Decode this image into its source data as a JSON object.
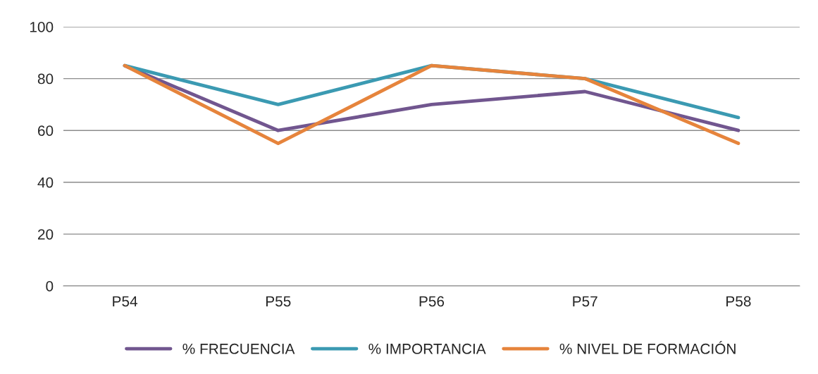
{
  "chart_data": {
    "type": "line",
    "categories": [
      "P54",
      "P55",
      "P56",
      "P57",
      "P58"
    ],
    "series": [
      {
        "name": "% FRECUENCIA",
        "color": "#71568f",
        "values": [
          85,
          60,
          70,
          75,
          60
        ]
      },
      {
        "name": "% IMPORTANCIA",
        "color": "#3b9ab2",
        "values": [
          85,
          70,
          85,
          80,
          65
        ]
      },
      {
        "name": "% NIVEL DE FORMACIÓN",
        "color": "#e6843c",
        "values": [
          85,
          55,
          85,
          80,
          55
        ]
      }
    ],
    "ylim": [
      0,
      100
    ],
    "yticks": [
      0,
      20,
      40,
      60,
      80,
      100
    ],
    "grid": "y",
    "legend": "bottom",
    "marker": "none",
    "line_style": "solid"
  }
}
